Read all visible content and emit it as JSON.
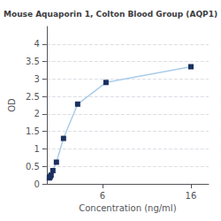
{
  "chart_data": {
    "type": "line",
    "title": "Mouse Aquaporin 1, Colton Blood Group (AQP1)",
    "xlabel": "Concentration (ng/ml)",
    "ylabel": "OD",
    "x": [
      0,
      0.05,
      0.1,
      0.2,
      0.4,
      0.8,
      1.6,
      3.2,
      6.4,
      16.0
    ],
    "values": [
      0.17,
      0.19,
      0.21,
      0.25,
      0.38,
      0.62,
      1.3,
      2.28,
      2.9,
      3.35
    ],
    "color": "#aacce8",
    "colors": [
      "#1a3060",
      "#1a3060",
      "#1a3060",
      "#1a3060",
      "#1a3060",
      "#1a3060",
      "#1a3060",
      "#1a3060",
      "#1a3060",
      "#1a3060"
    ],
    "marker": "square",
    "xlim": [
      -0.3,
      18
    ],
    "xticks": [
      6,
      16
    ],
    "ylim": [
      0,
      4.5
    ],
    "yticks": [
      0,
      0.5,
      1,
      1.5,
      2,
      2.5,
      3,
      3.5,
      4
    ],
    "grid": "y"
  }
}
